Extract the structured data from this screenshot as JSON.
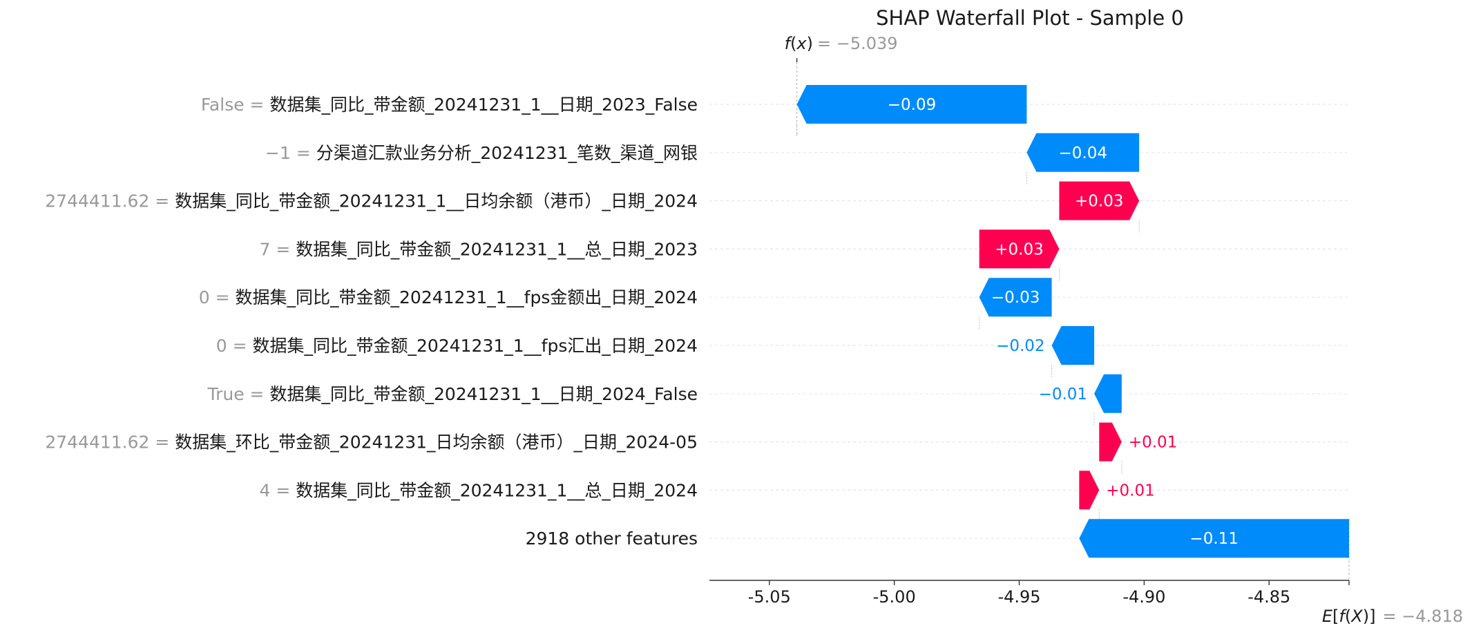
{
  "chart_data": {
    "type": "waterfall",
    "title": "SHAP Waterfall Plot - Sample 0",
    "fx": {
      "label": "f(x)",
      "value": -5.039,
      "value_text": "= −5.039"
    },
    "expected": {
      "label": "E[f(X)]",
      "value": -4.818,
      "value_text": "= −4.818"
    },
    "xlim": [
      -5.074,
      -4.818
    ],
    "xticks": [
      -5.05,
      -5.0,
      -4.95,
      -4.9,
      -4.85
    ],
    "xtick_labels": [
      "-5.05",
      "-5.00",
      "-4.95",
      "-4.90",
      "-4.85"
    ],
    "features": [
      {
        "value": "False",
        "name": "数据集_同比_带金额_20241231_1__日期_2023_False",
        "start": -4.947,
        "end": -5.039,
        "label": "−0.09"
      },
      {
        "value": "−1",
        "name": "分渠道汇款业务分析_20241231_笔数_渠道_网银",
        "start": -4.902,
        "end": -4.947,
        "label": "−0.04"
      },
      {
        "value": "2744411.62",
        "name": "数据集_同比_带金额_20241231_1__日均余额（港币）_日期_2024",
        "start": -4.934,
        "end": -4.902,
        "label": "+0.03"
      },
      {
        "value": "7",
        "name": "数据集_同比_带金额_20241231_1__总_日期_2023",
        "start": -4.966,
        "end": -4.934,
        "label": "+0.03"
      },
      {
        "value": "0",
        "name": "数据集_同比_带金额_20241231_1__fps金额出_日期_2024",
        "start": -4.937,
        "end": -4.966,
        "label": "−0.03"
      },
      {
        "value": "0",
        "name": "数据集_同比_带金额_20241231_1__fps汇出_日期_2024",
        "start": -4.92,
        "end": -4.937,
        "label": "−0.02"
      },
      {
        "value": "True",
        "name": "数据集_同比_带金额_20241231_1__日期_2024_False",
        "start": -4.909,
        "end": -4.92,
        "label": "−0.01"
      },
      {
        "value": "2744411.62",
        "name": "数据集_环比_带金额_20241231_日均余额（港币）_日期_2024-05",
        "start": -4.918,
        "end": -4.909,
        "label": "+0.01"
      },
      {
        "value": "4",
        "name": "数据集_同比_带金额_20241231_1__总_日期_2024",
        "start": -4.926,
        "end": -4.918,
        "label": "+0.01"
      },
      {
        "value": "",
        "name": "2918 other features",
        "start": -4.818,
        "end": -4.926,
        "label": "−0.11"
      }
    ],
    "colors": {
      "positive": "#ff0051",
      "negative": "#008bfb",
      "connector": "#bbbbbb",
      "grid": "#e6e6e6"
    }
  }
}
